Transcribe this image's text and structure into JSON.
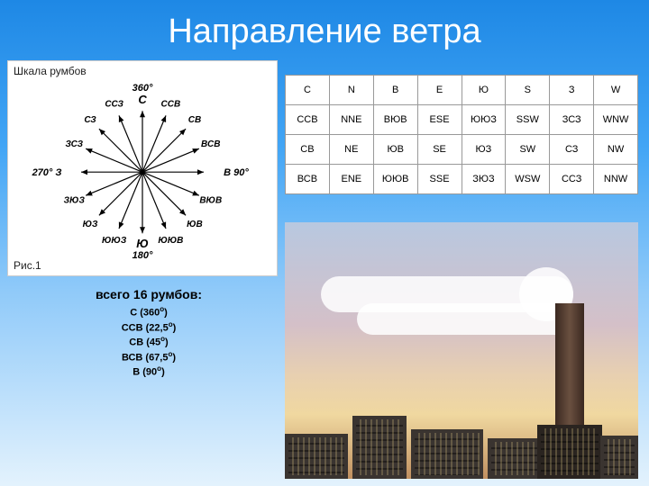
{
  "title": "Направление ветра",
  "compass": {
    "panel_title": "Шкала румбов",
    "fig_label": "Рис.1",
    "n_label": "360°",
    "s_label": "180°",
    "e_label": "В 90°",
    "w_label": "270° З",
    "points": [
      {
        "label": "С",
        "angle": 0
      },
      {
        "label": "ССВ",
        "angle": 22.5
      },
      {
        "label": "СВ",
        "angle": 45
      },
      {
        "label": "ВСВ",
        "angle": 67.5
      },
      {
        "label": "В",
        "angle": 90
      },
      {
        "label": "ВЮВ",
        "angle": 112.5
      },
      {
        "label": "ЮВ",
        "angle": 135
      },
      {
        "label": "ЮЮВ",
        "angle": 157.5
      },
      {
        "label": "Ю",
        "angle": 180
      },
      {
        "label": "ЮЮЗ",
        "angle": 202.5
      },
      {
        "label": "ЮЗ",
        "angle": 225
      },
      {
        "label": "ЗЮЗ",
        "angle": 247.5
      },
      {
        "label": "З",
        "angle": 270
      },
      {
        "label": "ЗСЗ",
        "angle": 292.5
      },
      {
        "label": "СЗ",
        "angle": 315
      },
      {
        "label": "ССЗ",
        "angle": 337.5
      }
    ],
    "line_radius": 68,
    "label_radius": 82,
    "line_color": "#000",
    "text_color": "#000",
    "main_fontsize": 13,
    "sub_fontsize": 10
  },
  "table": {
    "rows": [
      [
        "С",
        "N",
        "В",
        "E",
        "Ю",
        "S",
        "З",
        "W"
      ],
      [
        "ССВ",
        "NNE",
        "ВЮВ",
        "ESE",
        "ЮЮЗ",
        "SSW",
        "ЗСЗ",
        "WNW"
      ],
      [
        "СВ",
        "NE",
        "ЮВ",
        "SE",
        "ЮЗ",
        "SW",
        "СЗ",
        "NW"
      ],
      [
        "ВСВ",
        "ENE",
        "ЮЮВ",
        "SSE",
        "ЗЮЗ",
        "WSW",
        "ССЗ",
        "NNW"
      ]
    ]
  },
  "summary": {
    "heading": "всего 16 румбов:",
    "lines": [
      {
        "t": "С (360",
        "sup": "о",
        "tail": ")"
      },
      {
        "t": "ССВ (22,5",
        "sup": "о",
        "tail": ")"
      },
      {
        "t": "СВ (45",
        "sup": "о",
        "tail": ")"
      },
      {
        "t": "ВСВ (67,5",
        "sup": "о",
        "tail": ")"
      },
      {
        "t": "В (90",
        "sup": "о",
        "tail": ")"
      }
    ]
  },
  "colors": {
    "title": "#ffffff",
    "table_border": "#999999"
  }
}
